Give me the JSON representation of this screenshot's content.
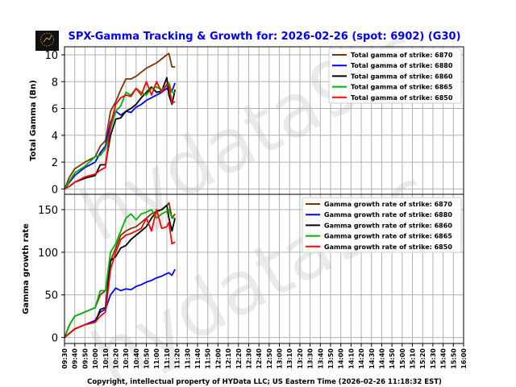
{
  "title": "SPX-Gamma Tracking & Growth for: 2026-02-26 (spot: 6902) (G30)",
  "title_color": "#0000ff",
  "footer": "Copyright, intellectual property of HYData LLC; US Eastern Time (2026-02-26 11:18:32 EST)",
  "logo_text": "HYData",
  "watermark": "hydata9.c",
  "chart_data": [
    {
      "type": "line",
      "ylabel": "Total Gamma (Bn)",
      "ylim": [
        -0.4,
        10.6
      ],
      "yticks": [
        0,
        2,
        4,
        6,
        8,
        10
      ],
      "grid": true,
      "legend": "top-right",
      "x": [
        "09:30",
        "09:35",
        "09:40",
        "09:50",
        "10:00",
        "10:05",
        "10:10",
        "10:15",
        "10:20",
        "10:25",
        "10:30",
        "10:35",
        "10:40",
        "10:45",
        "10:50",
        "10:55",
        "11:00",
        "11:05",
        "11:10",
        "11:12",
        "11:15",
        "11:18"
      ],
      "series": [
        {
          "name": "Total gamma of strike: 6870",
          "color": "#7f3300",
          "values": [
            0,
            0.9,
            1.5,
            2.0,
            2.4,
            3.2,
            3.6,
            5.8,
            6.5,
            7.4,
            8.2,
            8.2,
            8.4,
            8.7,
            9.0,
            9.2,
            9.4,
            9.7,
            10.0,
            10.1,
            9.1,
            9.1
          ]
        },
        {
          "name": "Total gamma of strike: 6880",
          "color": "#0000ff",
          "values": [
            0,
            0.5,
            1.0,
            1.6,
            2.0,
            2.7,
            3.2,
            5.0,
            5.8,
            5.5,
            5.8,
            5.7,
            6.1,
            6.3,
            6.6,
            6.8,
            7.0,
            7.2,
            7.5,
            7.3,
            7.3,
            7.9
          ]
        },
        {
          "name": "Total gamma of strike: 6860",
          "color": "#000000",
          "values": [
            0,
            0.2,
            0.5,
            0.8,
            1.0,
            1.8,
            1.8,
            4.0,
            5.2,
            5.3,
            5.8,
            6.0,
            6.3,
            6.8,
            7.2,
            7.6,
            7.2,
            7.3,
            8.3,
            7.0,
            6.3,
            7.4
          ]
        },
        {
          "name": "Total gamma of strike: 6865",
          "color": "#00b000",
          "values": [
            0,
            0.6,
            1.2,
            1.7,
            2.4,
            2.5,
            3.0,
            4.5,
            5.8,
            6.2,
            7.2,
            7.0,
            7.5,
            7.2,
            7.0,
            7.5,
            7.6,
            7.4,
            7.7,
            7.9,
            7.2,
            7.2
          ]
        },
        {
          "name": "Total gamma of strike: 6850",
          "color": "#ff0000",
          "values": [
            0,
            0.2,
            0.5,
            0.9,
            1.1,
            1.4,
            1.6,
            4.8,
            6.3,
            6.8,
            7.0,
            6.9,
            7.5,
            7.0,
            8.0,
            7.0,
            8.0,
            7.2,
            7.8,
            7.7,
            6.4,
            6.5
          ]
        }
      ]
    },
    {
      "type": "line",
      "ylabel": "Gamma growth rate",
      "ylim": [
        -7,
        168
      ],
      "yticks": [
        0,
        50,
        100,
        150
      ],
      "grid": true,
      "legend": "top-right",
      "x": [
        "09:30",
        "09:35",
        "09:40",
        "09:50",
        "10:00",
        "10:05",
        "10:10",
        "10:15",
        "10:20",
        "10:25",
        "10:30",
        "10:35",
        "10:40",
        "10:45",
        "10:50",
        "10:55",
        "11:00",
        "11:05",
        "11:10",
        "11:12",
        "11:15",
        "11:18"
      ],
      "xticks": [
        "09:30",
        "09:40",
        "09:50",
        "10:00",
        "10:10",
        "10:20",
        "10:30",
        "10:40",
        "10:50",
        "11:00",
        "11:10",
        "11:20",
        "11:30",
        "11:40",
        "11:50",
        "12:00",
        "12:10",
        "12:20",
        "12:30",
        "12:40",
        "12:50",
        "13:00",
        "13:10",
        "13:20",
        "13:30",
        "13:40",
        "13:50",
        "14:00",
        "14:10",
        "14:20",
        "14:30",
        "14:40",
        "14:50",
        "15:00",
        "15:10",
        "15:20",
        "15:30",
        "15:40",
        "15:50",
        "16:00"
      ],
      "series": [
        {
          "name": "Gamma growth rate of strike: 6870",
          "color": "#7f3300",
          "values": [
            0,
            15,
            25,
            30,
            35,
            50,
            55,
            90,
            105,
            120,
            125,
            128,
            130,
            135,
            140,
            145,
            148,
            150,
            155,
            158,
            140,
            145
          ]
        },
        {
          "name": "Gamma growth rate of strike: 6880",
          "color": "#0000ff",
          "values": [
            0,
            5,
            10,
            15,
            20,
            30,
            33,
            50,
            58,
            55,
            57,
            56,
            60,
            62,
            65,
            67,
            70,
            72,
            75,
            76,
            73,
            80
          ]
        },
        {
          "name": "Gamma growth rate of strike: 6860",
          "color": "#000000",
          "values": [
            0,
            5,
            10,
            15,
            18,
            33,
            35,
            90,
            95,
            105,
            108,
            115,
            120,
            125,
            130,
            140,
            148,
            150,
            155,
            140,
            125,
            140
          ]
        },
        {
          "name": "Gamma growth rate of strike: 6865",
          "color": "#00b000",
          "values": [
            0,
            15,
            25,
            30,
            35,
            55,
            55,
            100,
            110,
            125,
            140,
            145,
            138,
            145,
            147,
            150,
            140,
            145,
            148,
            150,
            140,
            140
          ]
        },
        {
          "name": "Gamma growth rate of strike: 6850",
          "color": "#ff0000",
          "values": [
            0,
            5,
            10,
            15,
            18,
            25,
            30,
            80,
            100,
            115,
            120,
            122,
            125,
            128,
            140,
            125,
            150,
            128,
            130,
            135,
            110,
            112
          ]
        }
      ]
    }
  ]
}
